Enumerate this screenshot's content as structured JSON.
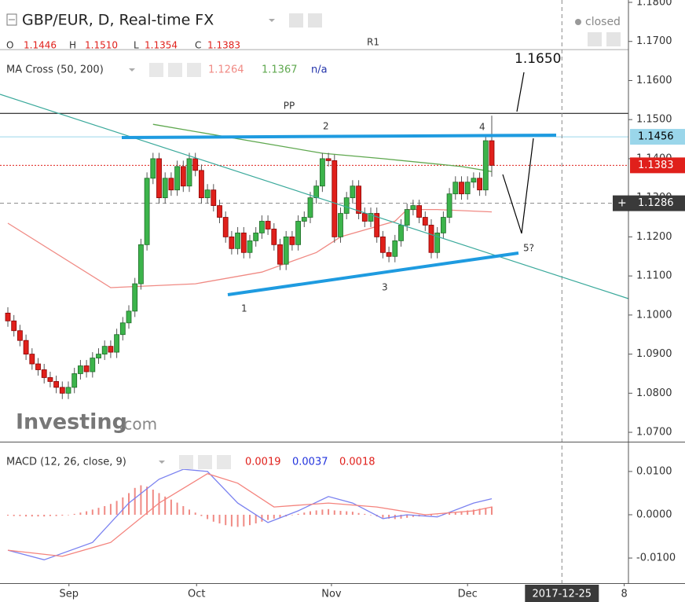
{
  "header": {
    "title": "GBP/EUR, D, Real-time FX",
    "status": "closed",
    "watermark": "Investing",
    "watermark_suffix": ".com"
  },
  "chart_data": [
    {
      "type": "candlestick",
      "ohlc_labels": [
        "O",
        "H",
        "L",
        "C"
      ],
      "ohlc_value_labels": [
        "1.1446",
        "1.1510",
        "1.1354",
        "1.1383"
      ],
      "up_color": "#3cb44b",
      "down_color": "#e0201b",
      "open": [
        1.1005,
        1.0985,
        1.096,
        1.0935,
        1.09,
        1.0875,
        1.086,
        1.084,
        1.083,
        1.0815,
        1.08,
        1.0815,
        1.085,
        1.087,
        1.0855,
        1.089,
        1.09,
        1.092,
        1.0905,
        1.095,
        1.098,
        1.101,
        1.108,
        1.118,
        1.135,
        1.14,
        1.13,
        1.135,
        1.132,
        1.138,
        1.133,
        1.14,
        1.137,
        1.13,
        1.132,
        1.128,
        1.125,
        1.12,
        1.117,
        1.121,
        1.116,
        1.119,
        1.121,
        1.124,
        1.122,
        1.118,
        1.113,
        1.12,
        1.118,
        1.124,
        1.125,
        1.13,
        1.133,
        1.14,
        1.1395,
        1.12,
        1.126,
        1.13,
        1.133,
        1.126,
        1.124,
        1.126,
        1.12,
        1.116,
        1.115,
        1.119,
        1.123,
        1.127,
        1.128,
        1.125,
        1.123,
        1.116,
        1.121,
        1.125,
        1.131,
        1.134,
        1.131,
        1.134,
        1.135,
        1.132,
        1.1446
      ],
      "high": [
        1.102,
        1.1,
        1.0975,
        1.095,
        1.0915,
        1.089,
        1.0875,
        1.0855,
        1.0845,
        1.083,
        1.083,
        1.0865,
        1.0885,
        1.0885,
        1.0905,
        1.0915,
        1.0935,
        1.0935,
        1.0965,
        1.0995,
        1.1025,
        1.1095,
        1.1195,
        1.1365,
        1.1415,
        1.1415,
        1.1365,
        1.1365,
        1.1395,
        1.1395,
        1.1415,
        1.1415,
        1.1385,
        1.1335,
        1.1335,
        1.1295,
        1.1265,
        1.1215,
        1.1225,
        1.1225,
        1.1205,
        1.1225,
        1.1255,
        1.1255,
        1.1235,
        1.1195,
        1.1215,
        1.1215,
        1.1255,
        1.1265,
        1.1315,
        1.1345,
        1.1415,
        1.1415,
        1.141,
        1.1275,
        1.1315,
        1.1345,
        1.1345,
        1.1275,
        1.1275,
        1.1275,
        1.1215,
        1.1175,
        1.1205,
        1.1245,
        1.1285,
        1.1295,
        1.1295,
        1.1265,
        1.1245,
        1.1225,
        1.1265,
        1.1325,
        1.1355,
        1.1355,
        1.1355,
        1.1365,
        1.1365,
        1.1461,
        1.151
      ],
      "low": [
        1.097,
        1.0945,
        1.092,
        1.0885,
        1.086,
        1.0845,
        1.0825,
        1.0815,
        1.08,
        1.0785,
        1.0785,
        1.08,
        1.0835,
        1.084,
        1.084,
        1.0875,
        1.0885,
        1.089,
        1.089,
        1.0935,
        1.0965,
        1.0995,
        1.1065,
        1.1165,
        1.1335,
        1.1285,
        1.1285,
        1.1305,
        1.1305,
        1.1315,
        1.1315,
        1.1355,
        1.1285,
        1.1285,
        1.1265,
        1.1235,
        1.1185,
        1.1155,
        1.1155,
        1.1145,
        1.1145,
        1.1175,
        1.1195,
        1.1205,
        1.1165,
        1.1115,
        1.1115,
        1.1165,
        1.1165,
        1.1225,
        1.1235,
        1.1285,
        1.1315,
        1.138,
        1.1185,
        1.1185,
        1.1245,
        1.1285,
        1.1245,
        1.1225,
        1.1225,
        1.1185,
        1.1145,
        1.1135,
        1.1135,
        1.1175,
        1.1215,
        1.1255,
        1.1235,
        1.1215,
        1.1145,
        1.1145,
        1.1195,
        1.1235,
        1.1295,
        1.1295,
        1.1295,
        1.1325,
        1.1305,
        1.1305,
        1.1354
      ],
      "close": [
        1.0985,
        1.096,
        1.0935,
        1.09,
        1.0875,
        1.086,
        1.084,
        1.083,
        1.0815,
        1.08,
        1.0815,
        1.085,
        1.087,
        1.0855,
        1.089,
        1.09,
        1.092,
        1.0905,
        1.095,
        1.098,
        1.101,
        1.108,
        1.118,
        1.135,
        1.14,
        1.13,
        1.135,
        1.132,
        1.138,
        1.133,
        1.14,
        1.137,
        1.13,
        1.132,
        1.128,
        1.125,
        1.12,
        1.117,
        1.121,
        1.116,
        1.119,
        1.121,
        1.124,
        1.122,
        1.118,
        1.113,
        1.12,
        1.118,
        1.124,
        1.125,
        1.13,
        1.133,
        1.14,
        1.1395,
        1.12,
        1.126,
        1.13,
        1.133,
        1.126,
        1.124,
        1.126,
        1.12,
        1.116,
        1.115,
        1.119,
        1.123,
        1.127,
        1.128,
        1.125,
        1.123,
        1.116,
        1.121,
        1.125,
        1.131,
        1.134,
        1.131,
        1.134,
        1.135,
        1.132,
        1.1446,
        1.1383
      ],
      "indicator_name": "MA Cross (50, 200)",
      "indicator_extra": "n/a",
      "lines": [
        {
          "color": "#f08a84",
          "x": [
            0,
            17,
            31,
            42,
            51,
            55,
            64,
            66,
            71,
            80
          ],
          "values": [
            1.1235,
            1.107,
            1.108,
            1.111,
            1.116,
            1.12,
            1.124,
            1.127,
            1.127,
            1.1264
          ]
        },
        {
          "color": "#5fa84f",
          "x": [
            24,
            52,
            62,
            75,
            80
          ],
          "values": [
            1.1488,
            1.1414,
            1.14,
            1.138,
            1.1367
          ]
        }
      ],
      "levels": [
        {
          "label": "R1",
          "value": 1.1679,
          "color": "#aaaaaa"
        },
        {
          "label": "PP",
          "value": 1.1516,
          "color": "#000000"
        }
      ],
      "highlight_level": {
        "value": 1.1456,
        "color": "#9ad6ea"
      },
      "crosshair_price": 1.1286,
      "annotations": [
        "1",
        "2",
        "3",
        "4",
        "5?",
        "1.1650"
      ],
      "ylim": [
        1.0676,
        1.1806
      ],
      "yticks": [
        {
          "value": 1.18,
          "label": "1.1800"
        },
        {
          "value": 1.17,
          "label": "1.1700"
        },
        {
          "value": 1.16,
          "label": "1.1600"
        },
        {
          "value": 1.15,
          "label": "1.1500"
        },
        {
          "value": 1.14,
          "label": "1.1400"
        },
        {
          "value": 1.13,
          "label": "1.1300"
        },
        {
          "value": 1.12,
          "label": "1.1200"
        },
        {
          "value": 1.11,
          "label": "1.1100"
        },
        {
          "value": 1.1,
          "label": "1.1000"
        },
        {
          "value": 1.09,
          "label": "1.0900"
        },
        {
          "value": 1.08,
          "label": "1.0800"
        },
        {
          "value": 1.07,
          "label": "1.0700"
        }
      ]
    },
    {
      "type": "macd",
      "title": "MACD (12, 26, close, 9)",
      "histogram": {
        "color": "#f08a84",
        "values": [
          -0.0002,
          -0.0003,
          -0.0003,
          -0.0004,
          -0.0004,
          -0.0004,
          -0.0004,
          -0.0003,
          -0.0003,
          -0.0002,
          -0.0001,
          0.0002,
          0.0005,
          0.0008,
          0.0012,
          0.0016,
          0.002,
          0.0025,
          0.0032,
          0.004,
          0.005,
          0.0062,
          0.0068,
          0.0065,
          0.0058,
          0.005,
          0.0042,
          0.0035,
          0.0028,
          0.002,
          0.0012,
          0.0005,
          -0.0003,
          -0.001,
          -0.0016,
          -0.002,
          -0.0024,
          -0.0027,
          -0.0028,
          -0.0027,
          -0.0024,
          -0.002,
          -0.0016,
          -0.0012,
          -0.0009,
          -0.0007,
          -0.0004,
          -0.0001,
          0.0002,
          0.0005,
          0.0008,
          0.001,
          0.0012,
          0.0013,
          0.001,
          0.0009,
          0.0008,
          0.0007,
          0.0004,
          0.0002,
          -0.0001,
          -0.0004,
          -0.0007,
          -0.0009,
          -0.001,
          -0.0009,
          -0.0007,
          -0.0005,
          -0.0004,
          -0.0003,
          -0.0002,
          0,
          0.0002,
          0.0004,
          0.0006,
          0.0008,
          0.001,
          0.0012,
          0.0014,
          0.0016,
          0.0019
        ]
      },
      "lines": [
        {
          "color": "#7b82f0",
          "x": [
            0,
            6,
            14,
            20,
            25,
            29,
            33,
            38,
            43,
            48,
            53,
            57,
            62,
            66,
            71,
            77,
            80
          ],
          "values": [
            -0.0082,
            -0.0104,
            -0.0064,
            0.0027,
            0.0082,
            0.0105,
            0.01,
            0.0027,
            -0.0018,
            0.0009,
            0.0042,
            0.0027,
            -0.0009,
            0,
            -0.0005,
            0.0027,
            0.0037
          ]
        },
        {
          "color": "#f4837d",
          "x": [
            0,
            9,
            17,
            25,
            33,
            38,
            44,
            53,
            61,
            69,
            77,
            80
          ],
          "values": [
            -0.0082,
            -0.0096,
            -0.0064,
            0.0027,
            0.0095,
            0.0073,
            0.0018,
            0.0027,
            0.0018,
            0,
            0.0009,
            0.0018
          ]
        }
      ],
      "ylim": [
        -0.0158,
        0.0167
      ],
      "yticks": [
        {
          "value": 0.01,
          "label": "0.0100"
        },
        {
          "value": 0,
          "label": "0.0000"
        },
        {
          "value": -0.01,
          "label": "-0.0100"
        }
      ],
      "xlim": [
        -1.3,
        102.6
      ],
      "xticks": [
        {
          "value": 10.1,
          "label": "Sep"
        },
        {
          "value": 31.2,
          "label": "Oct"
        },
        {
          "value": 53.5,
          "label": "Nov"
        },
        {
          "value": 76,
          "label": "Dec"
        },
        {
          "value": 101.9,
          "label": "8"
        }
      ],
      "crosshair_date": {
        "value": 91.6,
        "label": "2017-12-25"
      }
    }
  ]
}
